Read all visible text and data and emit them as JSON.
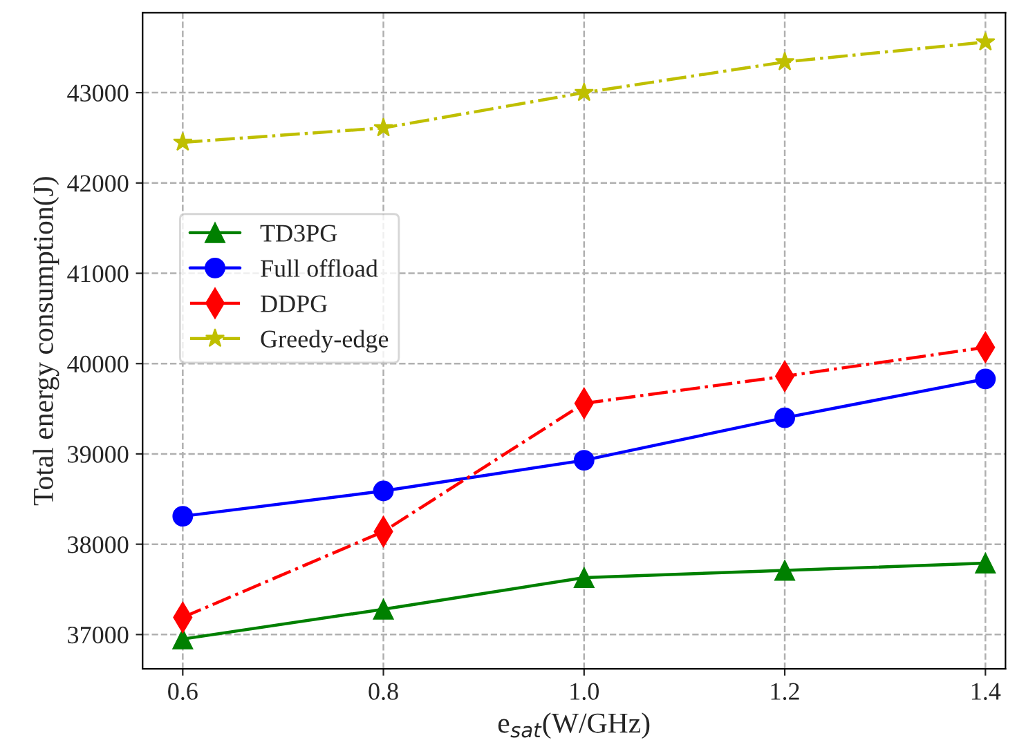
{
  "chart_data": {
    "type": "line",
    "xlabel": "e$_{sat}$(W/GHz)",
    "ylabel": "Total energy consumption(J)",
    "x": [
      0.6,
      0.8,
      1.0,
      1.2,
      1.4
    ],
    "series": [
      {
        "name": "TD3PG",
        "color": "#008000",
        "marker": "triangle",
        "line_style": "solid",
        "values": [
          36950,
          37280,
          37630,
          37710,
          37790
        ]
      },
      {
        "name": "Full offload",
        "color": "#0000ff",
        "marker": "circle",
        "line_style": "solid",
        "values": [
          38310,
          38590,
          38930,
          39400,
          39830
        ]
      },
      {
        "name": "DDPG",
        "color": "#ff0000",
        "marker": "diamond",
        "line_style": "dashdot",
        "values": [
          37190,
          38140,
          39560,
          39860,
          40180
        ]
      },
      {
        "name": "Greedy-edge",
        "color": "#bfbf00",
        "marker": "star",
        "line_style": "dashdot",
        "values": [
          42450,
          42610,
          43000,
          43340,
          43560
        ]
      }
    ],
    "xlim": [
      0.56,
      1.42
    ],
    "ylim": [
      36620,
      43885
    ],
    "xticks": [
      {
        "value": 0.6,
        "label": "0.6"
      },
      {
        "value": 0.8,
        "label": "0.8"
      },
      {
        "value": 1.0,
        "label": "1.0"
      },
      {
        "value": 1.2,
        "label": "1.2"
      },
      {
        "value": 1.4,
        "label": "1.4"
      }
    ],
    "yticks": [
      37000,
      38000,
      39000,
      40000,
      41000,
      42000,
      43000
    ],
    "grid": true,
    "legend": "center left"
  }
}
